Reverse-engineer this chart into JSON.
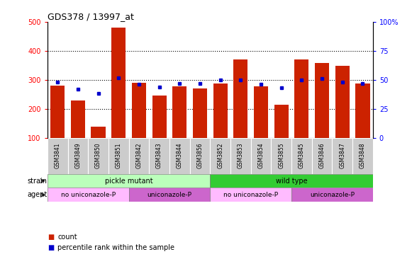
{
  "title": "GDS378 / 13997_at",
  "samples": [
    "GSM3841",
    "GSM3849",
    "GSM3850",
    "GSM3851",
    "GSM3842",
    "GSM3843",
    "GSM3844",
    "GSM3856",
    "GSM3852",
    "GSM3853",
    "GSM3854",
    "GSM3855",
    "GSM3845",
    "GSM3846",
    "GSM3847",
    "GSM3848"
  ],
  "counts": [
    280,
    228,
    138,
    480,
    290,
    247,
    278,
    270,
    287,
    370,
    278,
    215,
    370,
    358,
    349,
    287
  ],
  "percentiles": [
    48,
    42,
    38,
    52,
    46,
    44,
    47,
    47,
    50,
    50,
    46,
    43,
    50,
    51,
    48,
    47
  ],
  "bar_color": "#cc2200",
  "dot_color": "#0000cc",
  "left_ylim": [
    100,
    500
  ],
  "left_yticks": [
    100,
    200,
    300,
    400,
    500
  ],
  "right_ylim": [
    0,
    100
  ],
  "right_yticks": [
    0,
    25,
    50,
    75,
    100
  ],
  "right_ylabel_labels": [
    "0",
    "25",
    "50",
    "75",
    "100%"
  ],
  "strain_groups": [
    {
      "label": "pickle mutant",
      "start": 0,
      "end": 8,
      "color": "#bbffbb"
    },
    {
      "label": "wild type",
      "start": 8,
      "end": 16,
      "color": "#33cc33"
    }
  ],
  "agent_groups": [
    {
      "label": "no uniconazole-P",
      "start": 0,
      "end": 4,
      "color": "#ffbbff"
    },
    {
      "label": "uniconazole-P",
      "start": 4,
      "end": 8,
      "color": "#cc66cc"
    },
    {
      "label": "no uniconazole-P",
      "start": 8,
      "end": 12,
      "color": "#ffbbff"
    },
    {
      "label": "uniconazole-P",
      "start": 12,
      "end": 16,
      "color": "#cc66cc"
    }
  ],
  "legend_count_color": "#cc2200",
  "legend_dot_color": "#0000cc",
  "bg_color": "#ffffff",
  "tick_label_bg": "#cccccc"
}
